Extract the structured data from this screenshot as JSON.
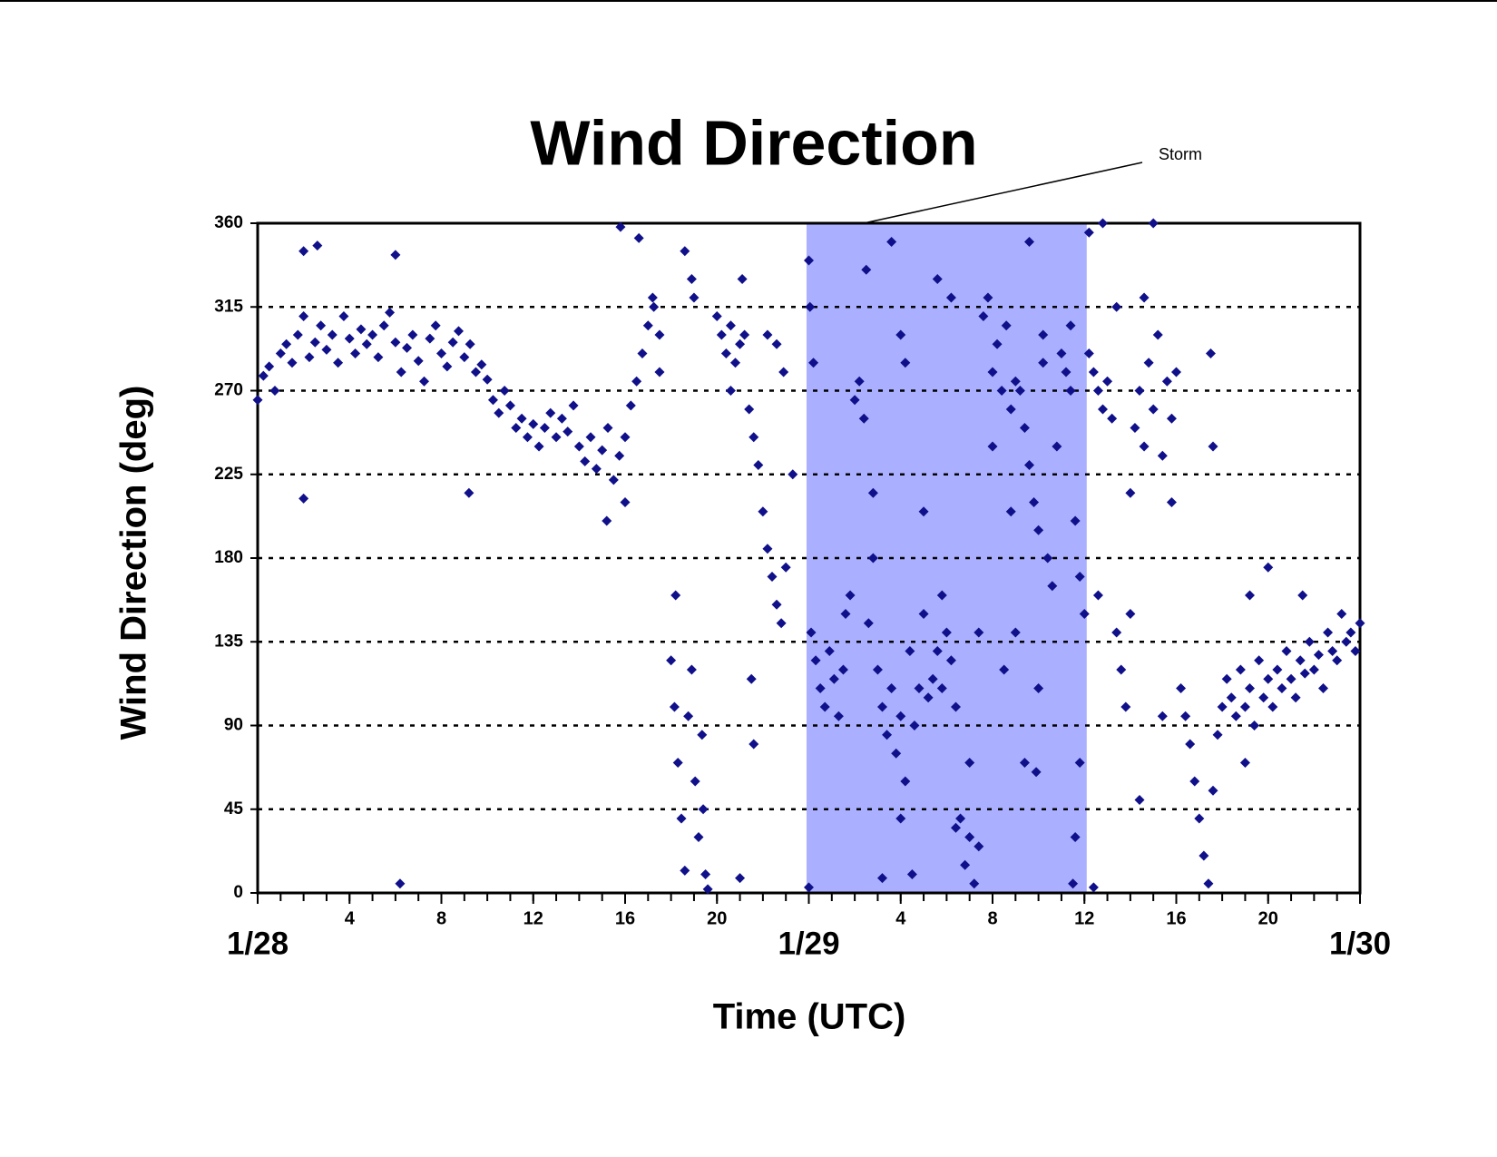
{
  "chart_data": {
    "type": "scatter",
    "title": "Wind Direction",
    "x_label": "Time (UTC)",
    "y_label": "Wind Direction (deg)",
    "annotation": "Storm",
    "highlight": {
      "xlim": [
        23.9,
        36.1
      ],
      "color": "#aab0ff"
    },
    "xlim": [
      0,
      48
    ],
    "ylim": [
      0,
      360
    ],
    "yticks": [
      0,
      45,
      90,
      135,
      180,
      225,
      270,
      315,
      360
    ],
    "xticks": [
      4,
      8,
      12,
      16,
      20,
      {
        "value": 28,
        "label": "4"
      },
      {
        "value": 32,
        "label": "8"
      },
      {
        "value": 36,
        "label": "12"
      },
      {
        "value": 40,
        "label": "16"
      },
      {
        "value": 44,
        "label": "20"
      }
    ],
    "xminor_ticks": [
      0,
      1,
      2,
      3,
      4,
      5,
      6,
      7,
      8,
      9,
      10,
      11,
      12,
      13,
      14,
      15,
      16,
      17,
      18,
      19,
      20,
      21,
      22,
      23,
      24,
      25,
      26,
      27,
      28,
      29,
      30,
      31,
      32,
      33,
      34,
      35,
      36,
      37,
      38,
      39,
      40,
      41,
      42,
      43,
      44,
      45,
      46,
      47,
      48
    ],
    "date_labels": [
      {
        "value": 0,
        "label": "1/28"
      },
      {
        "value": 24,
        "label": "1/29"
      },
      {
        "value": 48,
        "label": "1/30"
      }
    ],
    "grid": true,
    "series": [
      {
        "color": "#10108a",
        "x": [
          0,
          0.25,
          0.5,
          0.75,
          1,
          1.25,
          1.5,
          1.75,
          2,
          2.25,
          2.5,
          2.75,
          3,
          3.25,
          3.5,
          3.75,
          4,
          4.25,
          4.5,
          4.75,
          5,
          5.25,
          5.5,
          5.75,
          6,
          6.25,
          6.5,
          6.75,
          7,
          7.25,
          7.5,
          7.75,
          8,
          8.25,
          8.5,
          8.75,
          9,
          9.25,
          9.5,
          9.75,
          10,
          2.0,
          2.6,
          6.0,
          6.2,
          2.0,
          9.2,
          10.25,
          10.5,
          10.75,
          11,
          11.25,
          11.5,
          11.75,
          12,
          12.25,
          12.5,
          12.75,
          13,
          13.25,
          13.5,
          13.75,
          14,
          14.25,
          14.5,
          14.75,
          15,
          15.25,
          15.5,
          15.75,
          16,
          15.8,
          16.6,
          15.2,
          16.0,
          16.25,
          16.5,
          16.75,
          17,
          17.25,
          17.5,
          17.2,
          17.5,
          18.0,
          18.15,
          18.3,
          18.45,
          18.6,
          18.75,
          18.9,
          19.05,
          19.2,
          19.35,
          19.5,
          18.6,
          18.9,
          19.0,
          18.2,
          19.4,
          19.6,
          20.0,
          20.2,
          20.4,
          20.6,
          20.8,
          21.0,
          21.2,
          20.6,
          21.1,
          21.4,
          21.6,
          21.8,
          22.0,
          22.2,
          22.4,
          22.6,
          22.8,
          23.0,
          22.2,
          22.6,
          21.5,
          21.6,
          21.0,
          22.9,
          23.3,
          24.1,
          24.3,
          24.5,
          24.7,
          24.9,
          25.1,
          25.3,
          25.5,
          24.0,
          24.05,
          24.2,
          24.0,
          25.6,
          25.8,
          26.0,
          26.2,
          26.4,
          26.6,
          26.8,
          26.5,
          26.8,
          27.6,
          27.0,
          27.2,
          27.4,
          27.6,
          27.8,
          28.0,
          28.2,
          28.4,
          28.6,
          28.8,
          29.0,
          27.2,
          28.0,
          28.2,
          28.5,
          28.0,
          29.0,
          29.2,
          29.4,
          29.6,
          29.8,
          30.0,
          30.2,
          30.4,
          29.6,
          30.2,
          29.8,
          30.4,
          30.6,
          30.8,
          31.0,
          31.2,
          31.4,
          31.0,
          31.4,
          31.6,
          31.8,
          32.0,
          32.2,
          32.4,
          32.6,
          32.8,
          33.0,
          32.0,
          32.8,
          33.0,
          32.5,
          33.4,
          33.2,
          33.4,
          33.6,
          33.8,
          34.0,
          34.2,
          34.4,
          34.6,
          34.8,
          35.0,
          33.6,
          34.0,
          33.9,
          34.2,
          35.2,
          35.4,
          35.6,
          35.8,
          36.0,
          35.6,
          35.8,
          35.4,
          35.5,
          36.2,
          36.4,
          36.6,
          36.8,
          37.0,
          37.2,
          37.4,
          37.6,
          37.8,
          38.0,
          36.2,
          36.8,
          36.4,
          36.6,
          37.4,
          38.2,
          38.4,
          38.6,
          38.8,
          39.0,
          39.2,
          39.4,
          39.6,
          39.8,
          40.0,
          38.6,
          38.0,
          38.4,
          39.0,
          39.8,
          39.4,
          40.2,
          40.4,
          40.6,
          40.8,
          41.0,
          41.2,
          41.4,
          41.6,
          41.8,
          42.0,
          41.5,
          41.6,
          42.2,
          42.4,
          42.6,
          42.8,
          43.0,
          43.2,
          43.4,
          43.6,
          43.8,
          44.0,
          44.2,
          44.4,
          44.6,
          44.8,
          45.0,
          45.2,
          45.4,
          45.6,
          45.8,
          46.0,
          46.2,
          46.4,
          46.6,
          46.8,
          47.0,
          47.2,
          47.4,
          47.6,
          47.8,
          48.0,
          44.0,
          43.2,
          43.0,
          45.5
        ],
        "values": [
          265,
          278,
          283,
          270,
          290,
          295,
          285,
          300,
          310,
          288,
          296,
          305,
          292,
          300,
          285,
          310,
          298,
          290,
          303,
          295,
          300,
          288,
          305,
          312,
          296,
          280,
          293,
          300,
          286,
          275,
          298,
          305,
          290,
          283,
          296,
          302,
          288,
          295,
          280,
          284,
          276,
          345,
          348,
          343,
          5,
          212,
          215,
          265,
          258,
          270,
          262,
          250,
          255,
          245,
          252,
          240,
          250,
          258,
          245,
          255,
          248,
          262,
          240,
          232,
          245,
          228,
          238,
          250,
          222,
          235,
          245,
          358,
          352,
          200,
          210,
          262,
          275,
          290,
          305,
          315,
          300,
          320,
          280,
          125,
          100,
          70,
          40,
          12,
          95,
          120,
          60,
          30,
          85,
          10,
          345,
          330,
          320,
          160,
          45,
          2,
          310,
          300,
          290,
          305,
          285,
          295,
          300,
          270,
          330,
          260,
          245,
          230,
          205,
          185,
          170,
          155,
          145,
          175,
          300,
          295,
          115,
          80,
          8,
          280,
          225,
          140,
          125,
          110,
          100,
          130,
          115,
          95,
          120,
          340,
          315,
          285,
          3,
          150,
          160,
          265,
          275,
          255,
          145,
          180,
          335,
          215,
          350,
          120,
          100,
          85,
          110,
          75,
          95,
          60,
          130,
          90,
          110,
          150,
          8,
          300,
          285,
          10,
          40,
          205,
          105,
          115,
          130,
          110,
          140,
          125,
          100,
          330,
          320,
          160,
          35,
          40,
          15,
          30,
          5,
          25,
          70,
          140,
          310,
          320,
          280,
          295,
          270,
          305,
          260,
          275,
          240,
          205,
          140,
          120,
          70,
          270,
          250,
          230,
          210,
          195,
          285,
          180,
          165,
          240,
          290,
          350,
          110,
          65,
          300,
          280,
          270,
          200,
          170,
          150,
          30,
          70,
          305,
          5,
          290,
          280,
          270,
          260,
          275,
          255,
          140,
          120,
          100,
          150,
          355,
          360,
          3,
          160,
          315,
          250,
          270,
          240,
          285,
          260,
          300,
          235,
          275,
          255,
          280,
          320,
          215,
          50,
          360,
          210,
          95,
          110,
          95,
          80,
          60,
          40,
          20,
          5,
          55,
          85,
          100,
          290,
          240,
          115,
          105,
          95,
          120,
          100,
          110,
          90,
          125,
          105,
          115,
          100,
          120,
          110,
          130,
          115,
          105,
          125,
          118,
          135,
          120,
          128,
          110,
          140,
          130,
          125,
          150,
          135,
          140,
          130,
          145,
          175,
          160,
          70,
          160
        ]
      }
    ]
  }
}
